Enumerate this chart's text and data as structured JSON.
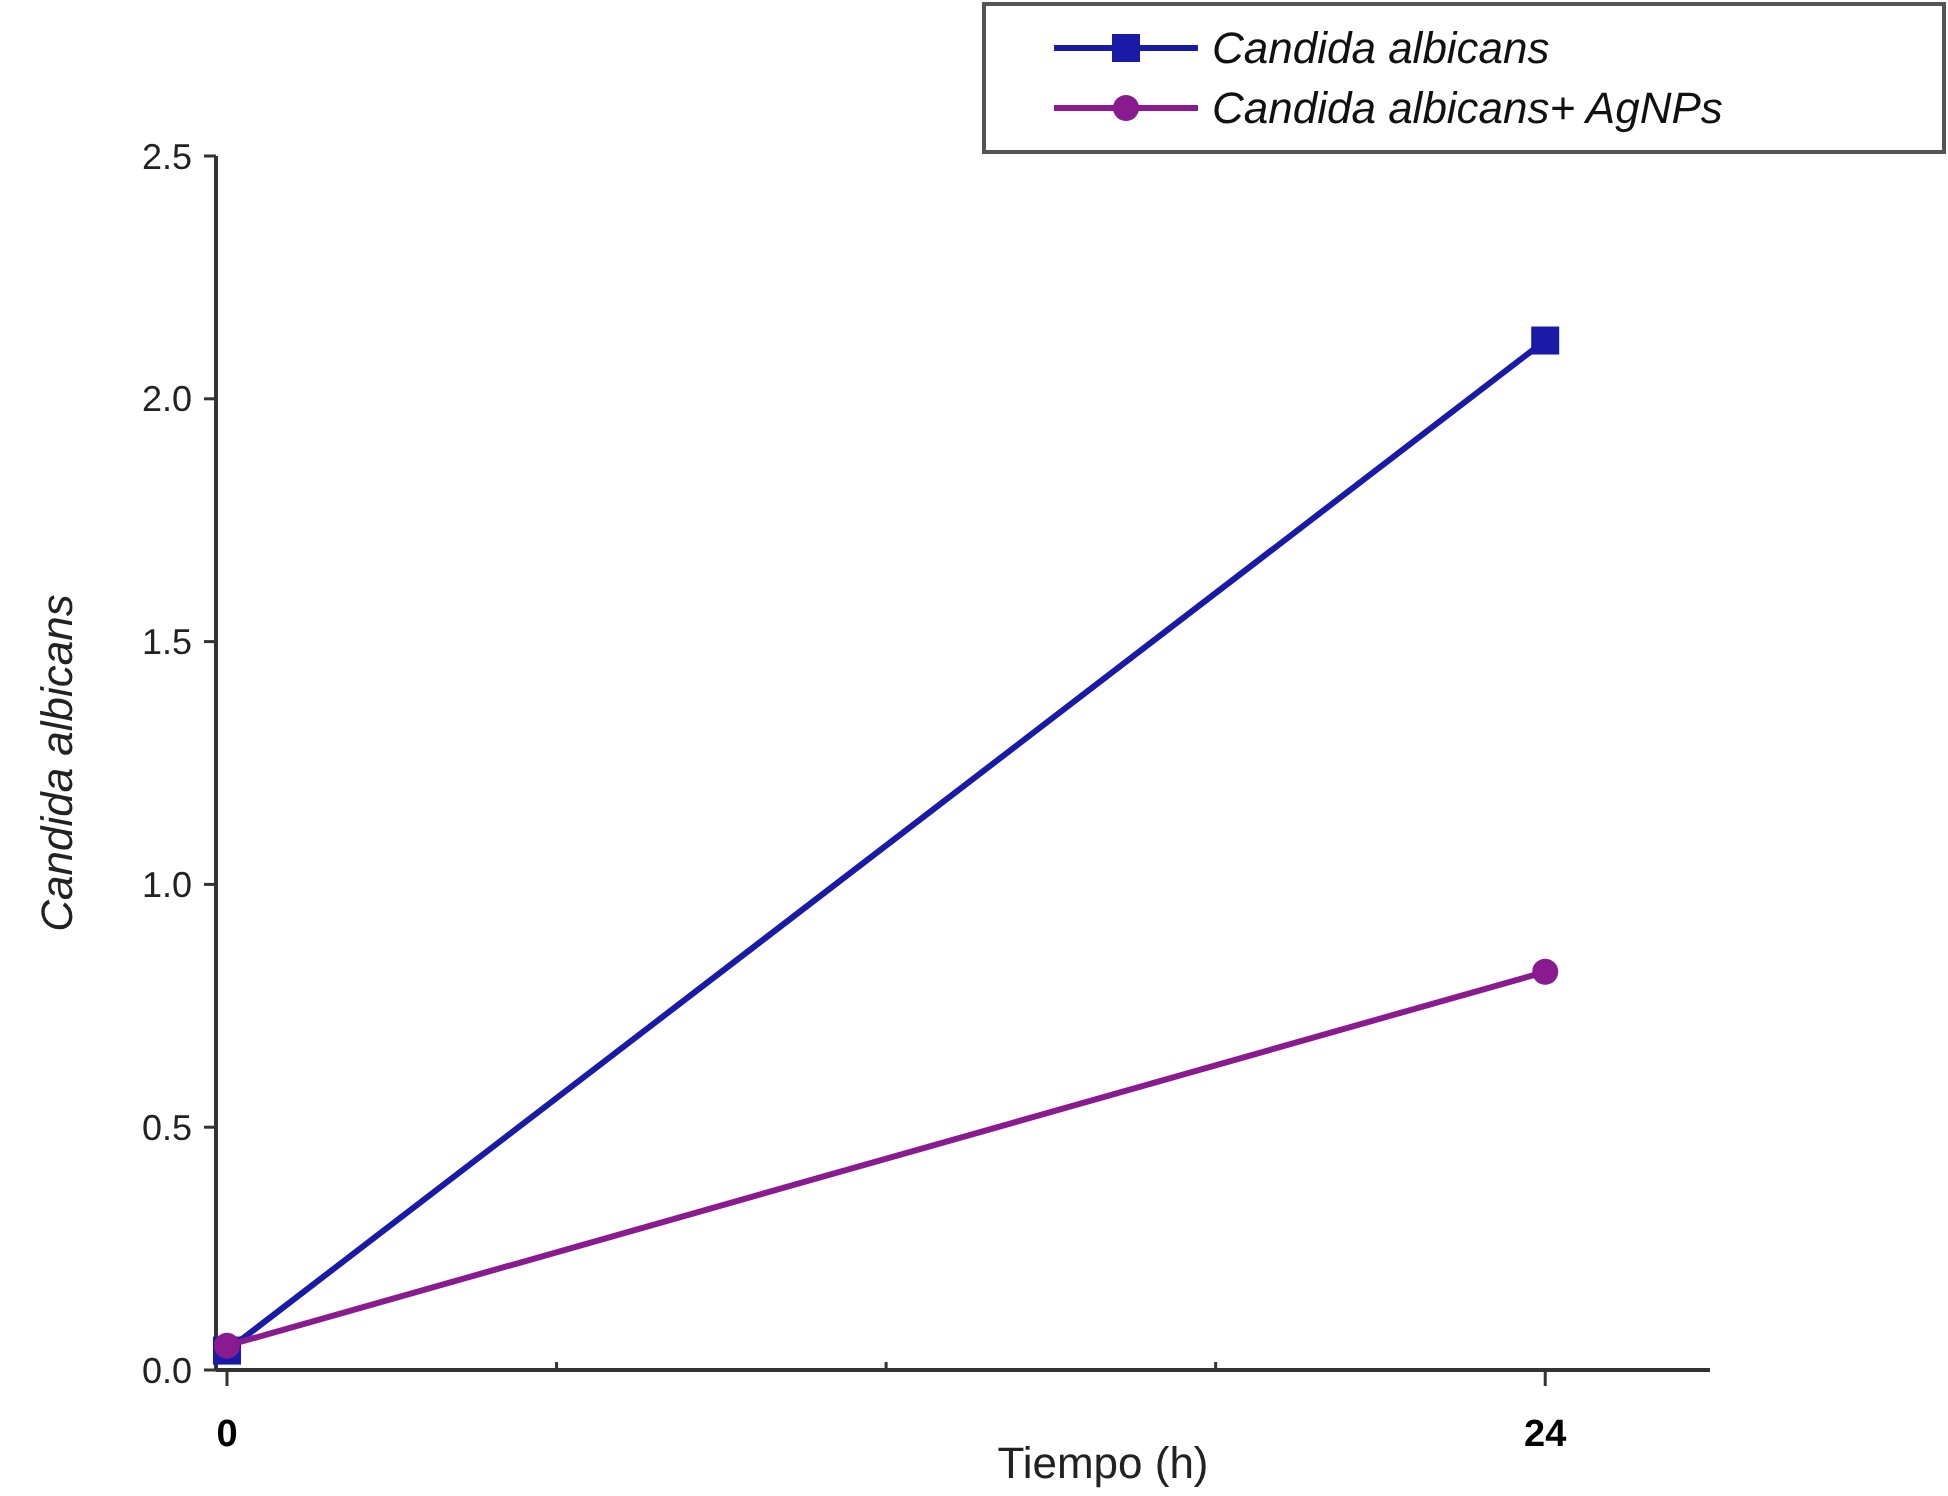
{
  "chart_data": {
    "type": "line",
    "xlabel": "Tiempo (h)",
    "ylabel": "Candida albicans",
    "x": [
      0,
      24
    ],
    "xlim": [
      -0.2,
      27
    ],
    "xticks": [
      0,
      {
        "value": 6,
        "label": null
      },
      {
        "value": 12,
        "label": null
      },
      {
        "value": 18,
        "label": null
      },
      24
    ],
    "ylim": [
      0,
      2.5
    ],
    "yticks": [
      {
        "value": 0,
        "label": "0.0"
      },
      0.5,
      {
        "value": 1,
        "label": "1.0"
      },
      1.5,
      {
        "value": 2,
        "label": "2.0"
      },
      2.5
    ],
    "legend": "top right",
    "grid": false,
    "series": [
      {
        "name": "Candida albicans",
        "color": "#1a1aa8",
        "marker": "square",
        "values": [
          0.04,
          2.12
        ]
      },
      {
        "name": "Candida albicans+ AgNPs",
        "color": "#8a1a8f",
        "marker": "circle",
        "values": [
          0.05,
          0.82
        ]
      }
    ]
  }
}
